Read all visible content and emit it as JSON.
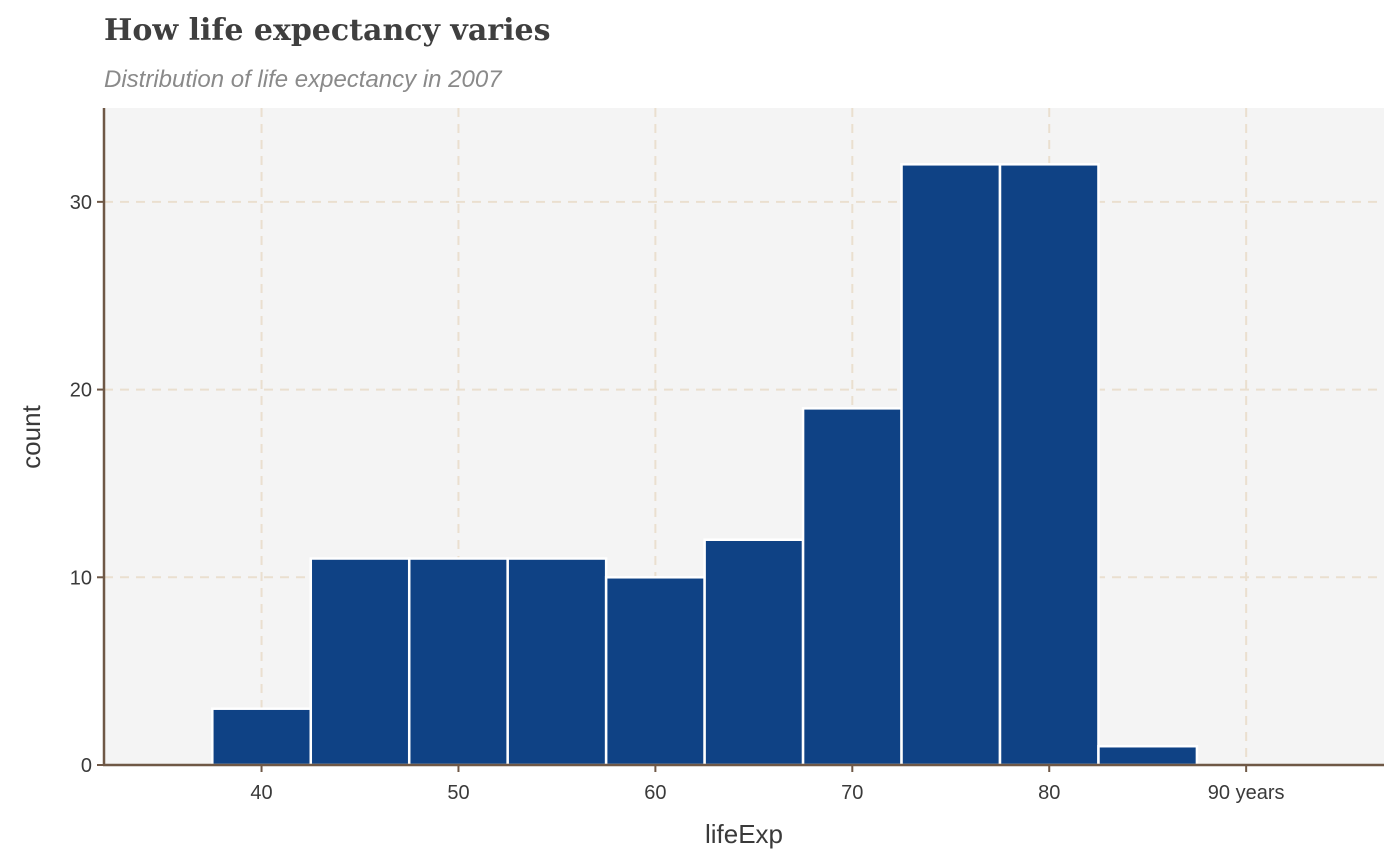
{
  "chart_data": {
    "type": "bar",
    "title": "How life expectancy varies",
    "subtitle": "Distribution of life expectancy in 2007",
    "xlabel": "lifeExp",
    "ylabel": "count",
    "bin_width": 5,
    "bins": [
      {
        "x_min": 37.5,
        "x_max": 42.5,
        "count": 3
      },
      {
        "x_min": 42.5,
        "x_max": 47.5,
        "count": 11
      },
      {
        "x_min": 47.5,
        "x_max": 52.5,
        "count": 11
      },
      {
        "x_min": 52.5,
        "x_max": 57.5,
        "count": 11
      },
      {
        "x_min": 57.5,
        "x_max": 62.5,
        "count": 10
      },
      {
        "x_min": 62.5,
        "x_max": 67.5,
        "count": 12
      },
      {
        "x_min": 67.5,
        "x_max": 72.5,
        "count": 19
      },
      {
        "x_min": 72.5,
        "x_max": 77.5,
        "count": 32
      },
      {
        "x_min": 77.5,
        "x_max": 82.5,
        "count": 32
      },
      {
        "x_min": 82.5,
        "x_max": 87.5,
        "count": 1
      }
    ],
    "xlim": [
      32,
      97
    ],
    "ylim": [
      0,
      35
    ],
    "x_ticks": [
      {
        "value": 40,
        "label": "40"
      },
      {
        "value": 50,
        "label": "50"
      },
      {
        "value": 60,
        "label": "60"
      },
      {
        "value": 70,
        "label": "70"
      },
      {
        "value": 80,
        "label": "80"
      },
      {
        "value": 90,
        "label": "90 years"
      }
    ],
    "y_ticks": [
      {
        "value": 0,
        "label": "0"
      },
      {
        "value": 10,
        "label": "10"
      },
      {
        "value": 20,
        "label": "20"
      },
      {
        "value": 30,
        "label": "30"
      }
    ],
    "grid": true,
    "legend": "none",
    "colors": {
      "bar_fill": "#0f4285",
      "bar_outline": "#ffffff",
      "panel_background": "#f4f4f4",
      "grid": "#eadfcf",
      "axis_line": "#6f5846"
    }
  }
}
